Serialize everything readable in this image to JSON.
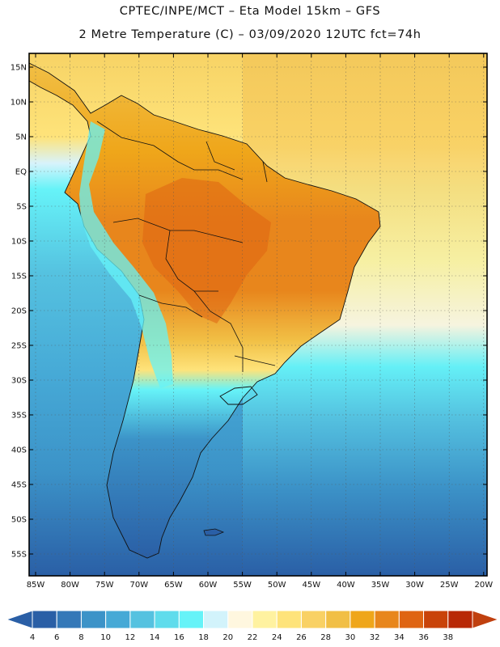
{
  "header": {
    "line1": "CPTEC/INPE/MCT –  Eta Model 15km – GFS",
    "line2": "2 Metre Temperature (C) – 03/09/2020 12UTC fct=74h"
  },
  "map": {
    "lat_labels": [
      "15N",
      "10N",
      "5N",
      "EQ",
      "5S",
      "10S",
      "15S",
      "20S",
      "25S",
      "30S",
      "35S",
      "40S",
      "45S",
      "50S",
      "55S"
    ],
    "lon_labels": [
      "85W",
      "80W",
      "75W",
      "70W",
      "65W",
      "60W",
      "55W",
      "50W",
      "45W",
      "40W",
      "35W",
      "30W",
      "25W",
      "20W"
    ]
  },
  "colorbar": {
    "ticks": [
      "4",
      "6",
      "8",
      "10",
      "12",
      "14",
      "16",
      "18",
      "20",
      "22",
      "24",
      "26",
      "28",
      "30",
      "32",
      "34",
      "36",
      "38"
    ],
    "colors": [
      "#2a5fa6",
      "#3478b8",
      "#3c93c8",
      "#46a9d6",
      "#55c2e0",
      "#5fdcec",
      "#66f3f8",
      "#d2f3fb",
      "#fff7df",
      "#fff2a0",
      "#fee37a",
      "#f9d164",
      "#f1bf45",
      "#efa61a",
      "#e8861c",
      "#df6412",
      "#c94309",
      "#b82806"
    ],
    "under_color": "#2a5fa6",
    "over_color": "#c0400f"
  }
}
